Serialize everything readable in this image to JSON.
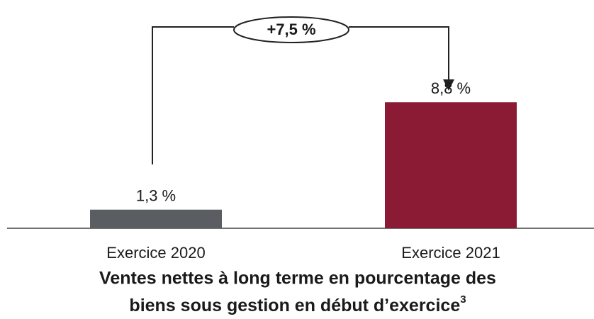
{
  "chart_data": {
    "type": "bar",
    "title": [
      "Ventes nettes à long terme en pourcentage des",
      "biens sous gestion en début d’exercice"
    ],
    "title_footnote": "3",
    "categories": [
      "Exercice 2020",
      "Exercice 2021"
    ],
    "values": [
      1.3,
      8.8
    ],
    "value_labels": [
      "1,3 %",
      "8,8 %"
    ],
    "colors": [
      "#5a5d61",
      "#8b1a35"
    ],
    "annotation": "+7,5 %"
  }
}
